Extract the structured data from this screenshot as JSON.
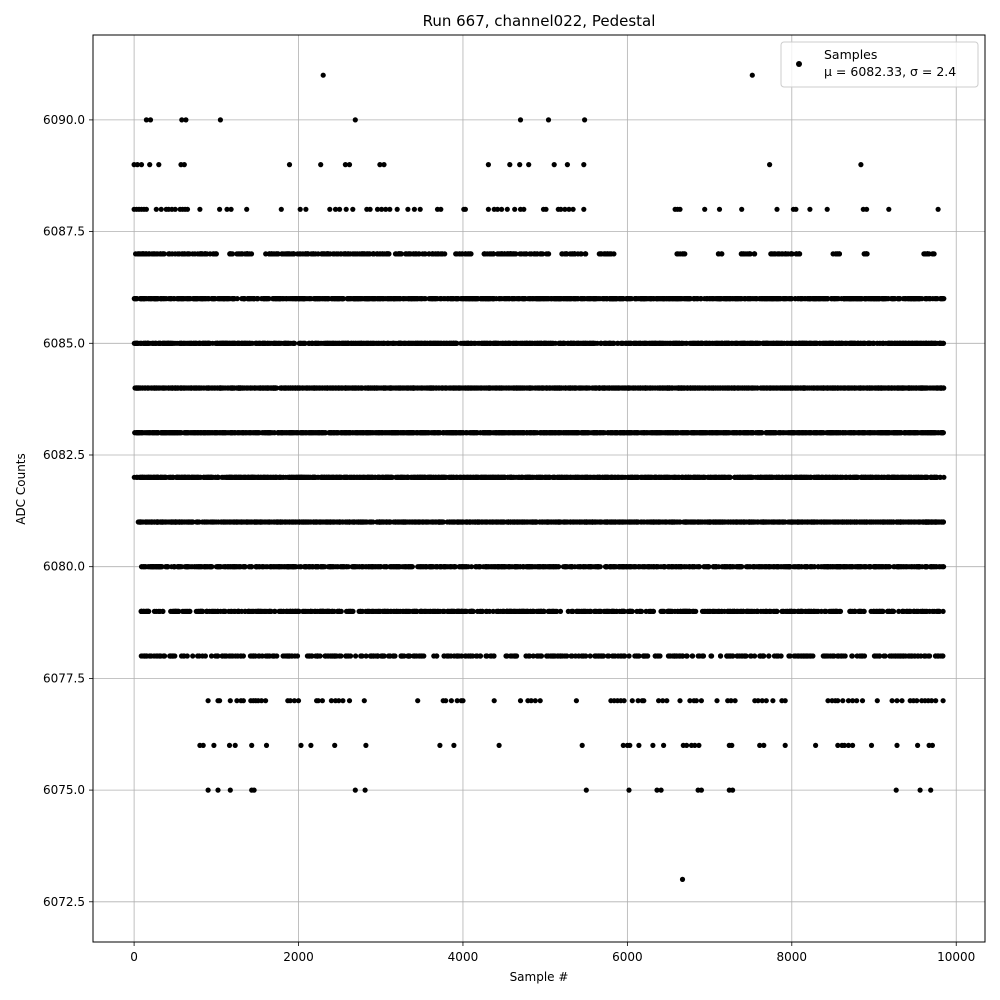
{
  "chart_data": {
    "type": "scatter",
    "title": "Run 667, channel022, Pedestal",
    "xlabel": "Sample #",
    "ylabel": "ADC Counts",
    "xlim": [
      -500,
      10350
    ],
    "ylim": [
      6071.6,
      6091.9
    ],
    "x_ticks": [
      0,
      2000,
      4000,
      6000,
      8000,
      10000
    ],
    "x_tick_labels": [
      "0",
      "2000",
      "4000",
      "6000",
      "8000",
      "10000"
    ],
    "y_ticks": [
      6072.5,
      6075.0,
      6077.5,
      6080.0,
      6082.5,
      6085.0,
      6087.5,
      6090.0
    ],
    "y_tick_labels": [
      "6072.5",
      "6075.0",
      "6077.5",
      "6080.0",
      "6082.5",
      "6085.0",
      "6087.5",
      "6090.0"
    ],
    "grid": true,
    "legend_position": "top-right",
    "marker_color": "#000000",
    "series": [
      {
        "name": "Samples",
        "legend_stats": "μ = 6082.33, σ = 2.4",
        "mean": 6082.33,
        "sigma": 2.4,
        "n_samples": 9850,
        "levels": [
          {
            "y": 6091,
            "x": [
              2300,
              7520
            ]
          },
          {
            "y": 6090,
            "x": [
              150,
              200,
              580,
              630,
              1050,
              2690,
              4700,
              5040,
              5480
            ]
          },
          {
            "y": 6089,
            "x": [
              0,
              40,
              90,
              190,
              300,
              570,
              610,
              1890,
              2270,
              2570,
              2620,
              2990,
              3040,
              4310,
              4570,
              4690,
              4800,
              5110,
              5270,
              5470,
              7730,
              8840
            ]
          },
          {
            "y": 6088,
            "x": [
              0,
              30,
              60,
              90,
              120,
              150,
              270,
              330,
              390,
              420,
              460,
              500,
              560,
              590,
              620,
              650,
              800,
              1040,
              1130,
              1180,
              1370,
              1790,
              2020,
              2090,
              2380,
              2450,
              2500,
              2580,
              2660,
              2830,
              2870,
              2960,
              3010,
              3060,
              3110,
              3200,
              3330,
              3410,
              3480,
              3690,
              3730,
              4010,
              4030,
              4310,
              4380,
              4420,
              4470,
              4540,
              4630,
              4700,
              4740,
              4980,
              5010,
              5160,
              5190,
              5240,
              5290,
              5340,
              5470,
              6580,
              6610,
              6640,
              6940,
              7120,
              7390,
              7820,
              8020,
              8050,
              8220,
              8430,
              8870,
              8910,
              9180,
              9780
            ]
          },
          {
            "y": 6087,
            "x_ranges": [
              [
                0,
                1000
              ],
              [
                1150,
                1450
              ],
              [
                1600,
                3800
              ],
              [
                3900,
                4100
              ],
              [
                4250,
                5050
              ],
              [
                5200,
                5500
              ],
              [
                5650,
                5850
              ],
              [
                6600,
                6700
              ],
              [
                7100,
                7150
              ],
              [
                7350,
                7550
              ],
              [
                7700,
                8100
              ],
              [
                8500,
                8600
              ],
              [
                8850,
                8950
              ],
              [
                9600,
                9750
              ]
            ],
            "count": 430
          },
          {
            "y": 6086,
            "x_ranges": [
              [
                0,
                9850
              ]
            ],
            "count": 1100
          },
          {
            "y": 6085,
            "x_ranges": [
              [
                0,
                9850
              ]
            ],
            "count": 1400
          },
          {
            "y": 6084,
            "x_ranges": [
              [
                0,
                9850
              ]
            ],
            "count": 1600
          },
          {
            "y": 6083,
            "x_ranges": [
              [
                0,
                9850
              ]
            ],
            "count": 1650
          },
          {
            "y": 6082,
            "x_ranges": [
              [
                0,
                9850
              ]
            ],
            "count": 1500
          },
          {
            "y": 6081,
            "x_ranges": [
              [
                50,
                9850
              ]
            ],
            "count": 1250
          },
          {
            "y": 6080,
            "x_ranges": [
              [
                80,
                9850
              ]
            ],
            "count": 1000
          },
          {
            "y": 6079,
            "x_ranges": [
              [
                80,
                9850
              ]
            ],
            "count": 700
          },
          {
            "y": 6078,
            "x_ranges": [
              [
                80,
                9850
              ]
            ],
            "count": 450
          },
          {
            "y": 6077,
            "x": [
              900,
              1020,
              1040,
              1170,
              1250,
              1300,
              1330,
              1420,
              1450,
              1480,
              1510,
              1550,
              1600,
              1870,
              1900,
              1950,
              2000,
              2220,
              2240,
              2290,
              2400,
              2450,
              2490,
              2540,
              2620,
              2800,
              3450,
              3760,
              3790,
              3860,
              3930,
              3980,
              4000,
              4380,
              4700,
              4790,
              4830,
              4880,
              4940,
              5380,
              5800,
              5840,
              5880,
              5920,
              5960,
              6060,
              6130,
              6180,
              6200,
              6380,
              6430,
              6480,
              6640,
              6760,
              6810,
              6840,
              6900,
              7090,
              7220,
              7260,
              7310,
              7550,
              7590,
              7640,
              7690,
              7770,
              7880,
              7920,
              8440,
              8490,
              8530,
              8560,
              8620,
              8690,
              8740,
              8790,
              8860,
              9040,
              9220,
              9280,
              9340,
              9440,
              9480,
              9520,
              9580,
              9620,
              9660,
              9700,
              9750,
              9840
            ]
          },
          {
            "y": 6076,
            "x": [
              800,
              840,
              970,
              1160,
              1230,
              1430,
              1610,
              2030,
              2150,
              2440,
              2820,
              3720,
              3890,
              4440,
              5450,
              5950,
              6000,
              6030,
              6140,
              6310,
              6440,
              6680,
              6720,
              6780,
              6820,
              6870,
              7240,
              7270,
              7610,
              7660,
              7920,
              8290,
              8560,
              8610,
              8640,
              8690,
              8740,
              8970,
              9280,
              9530,
              9670,
              9710
            ]
          },
          {
            "y": 6075,
            "x": [
              900,
              1020,
              1170,
              1430,
              1460,
              2690,
              2810,
              5500,
              6020,
              6360,
              6410,
              6860,
              6900,
              7240,
              7280,
              9270,
              9560,
              9690
            ]
          },
          {
            "y": 6073,
            "x": [
              6670
            ]
          }
        ]
      }
    ]
  }
}
